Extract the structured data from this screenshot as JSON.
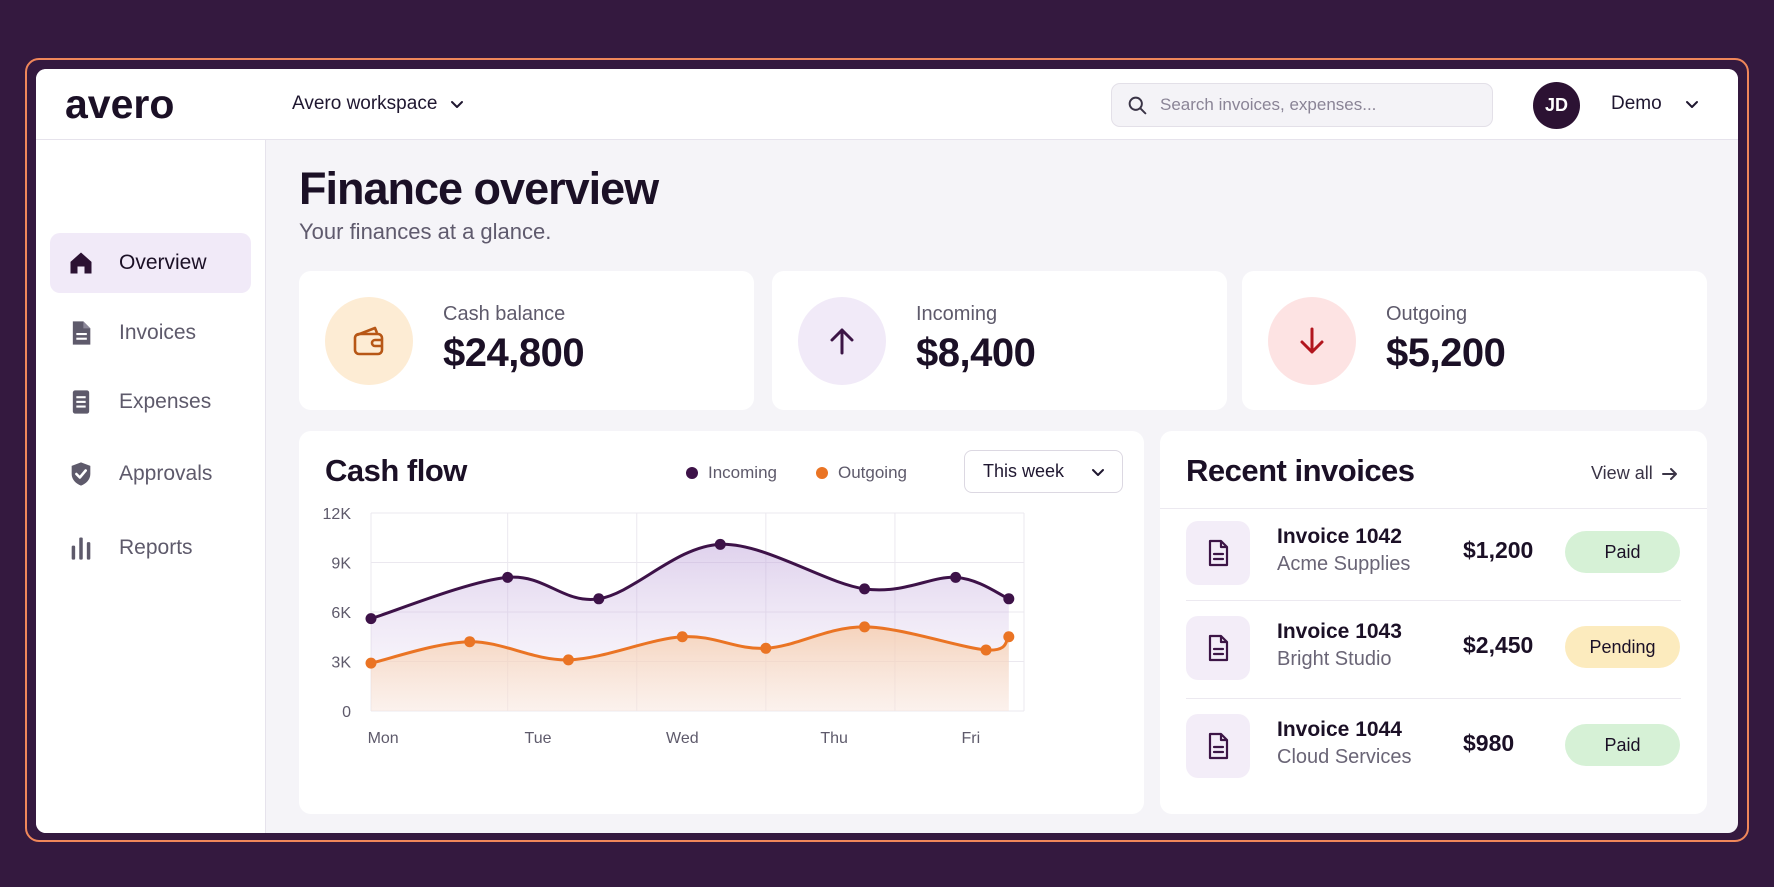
{
  "app": {
    "logo": "avero",
    "workspace": "Avero workspace"
  },
  "search": {
    "placeholder": "Search invoices, expenses..."
  },
  "user": {
    "initials": "JD",
    "name": "Demo"
  },
  "sidebar": {
    "items": [
      {
        "label": "Overview",
        "icon": "home-icon",
        "active": true
      },
      {
        "label": "Invoices",
        "icon": "document-icon",
        "active": false
      },
      {
        "label": "Expenses",
        "icon": "receipt-icon",
        "active": false
      },
      {
        "label": "Approvals",
        "icon": "shield-check-icon",
        "active": false
      },
      {
        "label": "Reports",
        "icon": "bar-chart-icon",
        "active": false
      }
    ]
  },
  "page": {
    "title": "Finance overview",
    "subtitle": "Your finances at a glance."
  },
  "stats": [
    {
      "label": "Cash balance",
      "value": "$24,800",
      "icon": "wallet-icon",
      "color": "#fdecd4",
      "icon_color": "#b75716"
    },
    {
      "label": "Incoming",
      "value": "$8,400",
      "icon": "arrow-up-icon",
      "color": "#f1eaf8",
      "icon_color": "#3c1546"
    },
    {
      "label": "Outgoing",
      "value": "$5,200",
      "icon": "arrow-down-icon",
      "color": "#fde3e3",
      "icon_color": "#b2161e"
    }
  ],
  "cashflow": {
    "title": "Cash flow",
    "range": "This week"
  },
  "chart_data": {
    "type": "line",
    "y_ticks": [
      "12K",
      "9K",
      "6K",
      "3K",
      "0"
    ],
    "x_labels": [
      "Mon",
      "Tue",
      "Wed",
      "Thu",
      "Fri"
    ],
    "ylim": [
      0,
      12000
    ],
    "xlim": [
      0,
      4.3
    ],
    "grid": true,
    "legend": "top",
    "series": [
      {
        "name": "Incoming",
        "color": "#3d1248",
        "x": [
          0,
          0.9,
          1.5,
          2.3,
          3.25,
          3.85,
          4.2
        ],
        "values": [
          5600,
          8100,
          6800,
          10100,
          7400,
          8100,
          6800
        ]
      },
      {
        "name": "Outgoing",
        "color": "#ea7424",
        "x": [
          0,
          0.65,
          1.3,
          2.05,
          2.6,
          3.25,
          4.05,
          4.2
        ],
        "values": [
          2900,
          4200,
          3100,
          4500,
          3800,
          5100,
          3700,
          4500
        ]
      }
    ]
  },
  "invoices": {
    "title": "Recent invoices",
    "view_all": "View all",
    "rows": [
      {
        "name": "Invoice 1042",
        "client": "Acme Supplies",
        "amount": "$1,200",
        "status": "Paid",
        "status_color": "#d6f1d6"
      },
      {
        "name": "Invoice 1043",
        "client": "Bright Studio",
        "amount": "$2,450",
        "status": "Pending",
        "status_color": "#fcebbe"
      },
      {
        "name": "Invoice 1044",
        "client": "Cloud Services",
        "amount": "$980",
        "status": "Paid",
        "status_color": "#d6f1d6"
      }
    ]
  }
}
